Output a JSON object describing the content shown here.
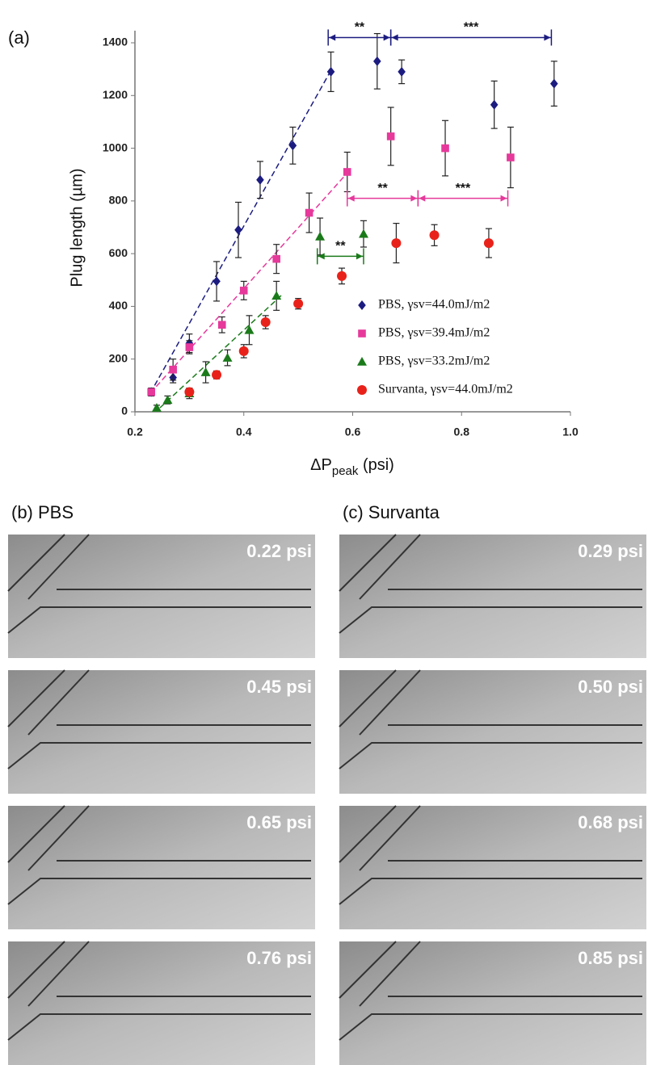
{
  "chart_data": {
    "type": "scatter",
    "panel_label": "(a)",
    "ylabel": "Plug length (µm)",
    "xlabel": [
      "ΔP",
      "peak",
      " (psi)"
    ],
    "xlim": [
      0.2,
      1.0
    ],
    "ylim": [
      0,
      1400
    ],
    "xticks": [
      0.2,
      0.4,
      0.6,
      0.8,
      {
        "value": 1.0,
        "label": "1.0"
      }
    ],
    "yticks": [
      0,
      200,
      400,
      600,
      800,
      1000,
      1200,
      1400
    ],
    "series": [
      {
        "name": "PBS, γsv=44.0mJ/m2",
        "color": "#1c1c80",
        "marker": "diamond",
        "x": [
          0.23,
          0.27,
          0.3,
          0.35,
          0.39,
          0.43,
          0.49,
          0.56,
          0.645,
          0.69,
          0.86,
          0.97
        ],
        "values": [
          75,
          130,
          260,
          495,
          690,
          880,
          1010,
          1290,
          1330,
          1290,
          1165,
          1245
        ],
        "errors": [
          15,
          20,
          35,
          75,
          105,
          70,
          70,
          75,
          105,
          45,
          90,
          85
        ]
      },
      {
        "name": "PBS, γsv=39.4mJ/m2",
        "color": "#e6399b",
        "marker": "square",
        "x": [
          0.23,
          0.27,
          0.3,
          0.36,
          0.4,
          0.46,
          0.52,
          0.59,
          0.67,
          0.77,
          0.89
        ],
        "values": [
          75,
          160,
          245,
          330,
          460,
          580,
          755,
          910,
          1045,
          1000,
          965
        ],
        "errors": [
          10,
          40,
          25,
          30,
          35,
          55,
          75,
          75,
          110,
          105,
          115
        ]
      },
      {
        "name": "PBS, γsv=33.2mJ/m2",
        "color": "#1a7a1a",
        "marker": "triangle",
        "x": [
          0.24,
          0.26,
          0.3,
          0.33,
          0.37,
          0.41,
          0.46,
          0.54,
          0.62
        ],
        "values": [
          15,
          45,
          70,
          150,
          205,
          310,
          440,
          665,
          675
        ],
        "errors": [
          10,
          15,
          20,
          40,
          30,
          55,
          55,
          70,
          50
        ]
      },
      {
        "name": "Survanta, γsv=44.0mJ/m2",
        "color": "#e8221a",
        "marker": "circle",
        "x": [
          0.3,
          0.35,
          0.4,
          0.44,
          0.5,
          0.58,
          0.68,
          0.75,
          0.85
        ],
        "values": [
          75,
          140,
          230,
          340,
          410,
          515,
          640,
          670,
          640
        ],
        "errors": [
          10,
          15,
          25,
          25,
          20,
          30,
          75,
          40,
          55
        ]
      }
    ],
    "annotations": [
      {
        "text": "**",
        "color": "#1c1c80",
        "x": [
          0.555,
          0.67
        ],
        "y": 1420
      },
      {
        "text": "***",
        "color": "#1c1c80",
        "x": [
          0.67,
          0.965
        ],
        "y": 1420
      },
      {
        "text": "**",
        "color": "#e6399b",
        "x": [
          0.59,
          0.72
        ],
        "y": 810
      },
      {
        "text": "***",
        "color": "#e6399b",
        "x": [
          0.72,
          0.885
        ],
        "y": 810
      },
      {
        "text": "**",
        "color": "#1a7a1a",
        "x": [
          0.535,
          0.62
        ],
        "y": 590
      }
    ]
  },
  "panels": [
    {
      "label": "(b) PBS",
      "images": [
        "0.22 psi",
        "0.45 psi",
        "0.65 psi",
        "0.76 psi"
      ]
    },
    {
      "label": "(c) Survanta",
      "images": [
        "0.29 psi",
        "0.50 psi",
        "0.68 psi",
        "0.85 psi"
      ]
    }
  ]
}
